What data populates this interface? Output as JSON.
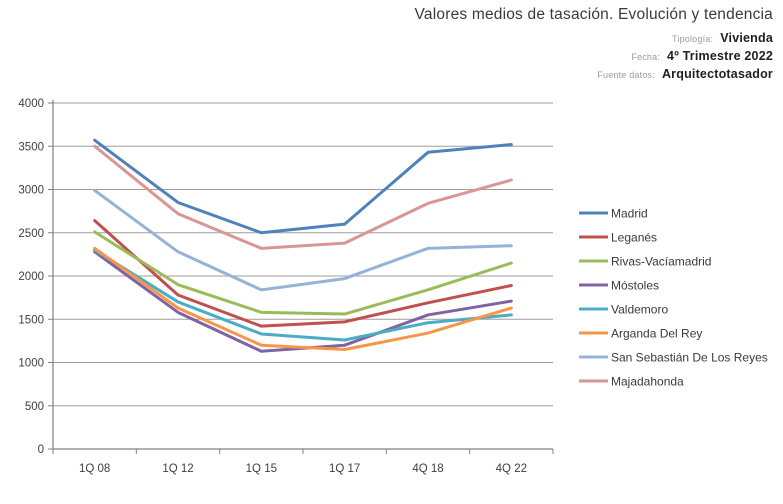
{
  "header": {
    "title": "Valores medios de tasación. Evolución y tendencia",
    "meta": [
      {
        "label": "Tipología:",
        "value": "Vivienda"
      },
      {
        "label": "Fecha:",
        "value": "4º Trimestre 2022"
      },
      {
        "label": "Fuente datos:",
        "value": "Arquitectotasador"
      }
    ]
  },
  "chart_data": {
    "type": "line",
    "title": "Valores medios de tasación. Evolución y tendencia",
    "categories": [
      "1Q 08",
      "1Q 12",
      "1Q 15",
      "1Q 17",
      "4Q 18",
      "4Q 22"
    ],
    "series": [
      {
        "name": "Madrid",
        "color": "#4F81BD",
        "values": [
          3570,
          2850,
          2500,
          2600,
          3430,
          3520
        ]
      },
      {
        "name": "Leganés",
        "color": "#C0504D",
        "values": [
          2640,
          1780,
          1420,
          1470,
          1690,
          1890
        ]
      },
      {
        "name": "Rivas-Vacíamadrid",
        "color": "#9BBB59",
        "values": [
          2510,
          1900,
          1580,
          1560,
          1840,
          2150
        ]
      },
      {
        "name": "Móstoles",
        "color": "#8064A2",
        "values": [
          2280,
          1580,
          1130,
          1200,
          1550,
          1710
        ]
      },
      {
        "name": "Valdemoro",
        "color": "#4BACC6",
        "values": [
          2300,
          1700,
          1330,
          1260,
          1460,
          1550
        ]
      },
      {
        "name": "Arganda Del Rey",
        "color": "#F79646",
        "values": [
          2320,
          1630,
          1200,
          1150,
          1340,
          1630
        ]
      },
      {
        "name": "San Sebastián De Los Reyes",
        "color": "#95B3D7",
        "values": [
          2990,
          2280,
          1840,
          1970,
          2320,
          2350
        ]
      },
      {
        "name": "Majadahonda",
        "color": "#D99694",
        "values": [
          3500,
          2720,
          2320,
          2380,
          2840,
          3110
        ]
      }
    ],
    "xlabel": "",
    "ylabel": "",
    "ylim": [
      0,
      4000
    ],
    "ytick_step": 500,
    "grid": true,
    "legend_position": "right",
    "colors": {
      "gridline": "#9d9d9d",
      "axis": "#808080",
      "tick_label": "#404040",
      "legend_label": "#3a3a3a"
    }
  }
}
